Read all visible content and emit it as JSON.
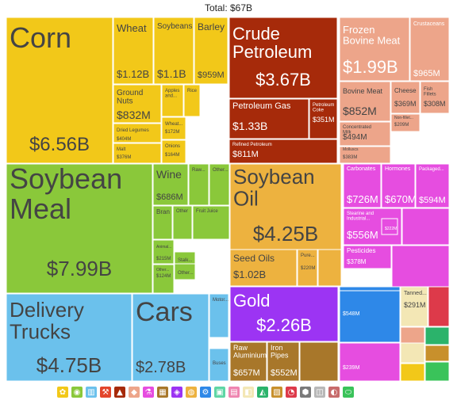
{
  "title": "Total: $67B",
  "chart_data": {
    "type": "treemap",
    "total": "Total: $67B",
    "tiles": [
      {
        "name": "Corn",
        "value": "$6.56B",
        "color": "#f2c819"
      },
      {
        "name": "Wheat",
        "value": "$1.12B",
        "color": "#f2c819"
      },
      {
        "name": "Soybeans",
        "value": "$1.1B",
        "color": "#f2c819"
      },
      {
        "name": "Barley",
        "value": "$959M",
        "color": "#f2c819"
      },
      {
        "name": "Ground Nuts",
        "value": "$832M",
        "color": "#f2c819"
      },
      {
        "name": "Apples and...",
        "value": "",
        "color": "#f2c819"
      },
      {
        "name": "Rice",
        "value": "",
        "color": "#f2c819"
      },
      {
        "name": "Dried Legumes",
        "value": "$404M",
        "color": "#f2c819"
      },
      {
        "name": "Malt",
        "value": "$376M",
        "color": "#f2c819"
      },
      {
        "name": "Wheat...",
        "value": "$172M",
        "color": "#f2c819"
      },
      {
        "name": "Onions",
        "value": "$164M",
        "color": "#f2c819"
      },
      {
        "name": "Crude Petroleum",
        "value": "$3.67B",
        "color": "#a62a0a"
      },
      {
        "name": "Petroleum Gas",
        "value": "$1.33B",
        "color": "#a62a0a"
      },
      {
        "name": "Petroleum Coke",
        "value": "$351M",
        "color": "#a62a0a"
      },
      {
        "name": "Refined Petroleum",
        "value": "$811M",
        "color": "#a62a0a"
      },
      {
        "name": "Frozen Bovine Meat",
        "value": "$1.99B",
        "color": "#eda58a"
      },
      {
        "name": "Crustaceans",
        "value": "$965M",
        "color": "#eda58a"
      },
      {
        "name": "Bovine Meat",
        "value": "$852M",
        "color": "#eda58a"
      },
      {
        "name": "Cheese",
        "value": "$369M",
        "color": "#eda58a"
      },
      {
        "name": "Fish Fillets",
        "value": "$308M",
        "color": "#eda58a"
      },
      {
        "name": "Concentrated Milk",
        "value": "$494M",
        "color": "#eda58a"
      },
      {
        "name": "Non-fillet...",
        "value": "$209M",
        "color": "#eda58a"
      },
      {
        "name": "Molluscs",
        "value": "$383M",
        "color": "#eda58a"
      },
      {
        "name": "Soybean Meal",
        "value": "$7.99B",
        "color": "#8ac83a"
      },
      {
        "name": "Wine",
        "value": "$686M",
        "color": "#8ac83a"
      },
      {
        "name": "Raw...",
        "value": "",
        "color": "#8ac83a"
      },
      {
        "name": "Other...",
        "value": "",
        "color": "#8ac83a"
      },
      {
        "name": "Bran",
        "value": "",
        "color": "#8ac83a"
      },
      {
        "name": "Other",
        "value": "",
        "color": "#8ac83a"
      },
      {
        "name": "Fruit Juice",
        "value": "",
        "color": "#8ac83a"
      },
      {
        "name": "Animal...",
        "value": "$215M",
        "color": "#8ac83a"
      },
      {
        "name": "Other...",
        "value": "$124M",
        "color": "#8ac83a"
      },
      {
        "name": "Stalk...",
        "value": "",
        "color": "#8ac83a"
      },
      {
        "name": "Other...",
        "value": "",
        "color": "#8ac83a"
      },
      {
        "name": "Soybean Oil",
        "value": "$4.25B",
        "color": "#edb23f"
      },
      {
        "name": "Seed Oils",
        "value": "$1.02B",
        "color": "#edb23f"
      },
      {
        "name": "Pure...",
        "value": "$220M",
        "color": "#edb23f"
      },
      {
        "name": "Carbonates",
        "value": "$726M",
        "color": "#e64de0"
      },
      {
        "name": "Hormones",
        "value": "$670M",
        "color": "#e64de0"
      },
      {
        "name": "Packaged...",
        "value": "$594M",
        "color": "#e64de0"
      },
      {
        "name": "Stearine and Industrial...",
        "value": "$556M",
        "color": "#e64de0"
      },
      {
        "name": "",
        "value": "$222M",
        "color": "#e64de0"
      },
      {
        "name": "Pesticides",
        "value": "$378M",
        "color": "#e64de0"
      },
      {
        "name": "Delivery Trucks",
        "value": "$4.75B",
        "color": "#6bc1ec"
      },
      {
        "name": "Cars",
        "value": "$2.78B",
        "color": "#6bc1ec"
      },
      {
        "name": "Motor...",
        "value": "",
        "color": "#6bc1ec"
      },
      {
        "name": "Buses",
        "value": "",
        "color": "#6bc1ec"
      },
      {
        "name": "Gold",
        "value": "$2.26B",
        "color": "#9c34f3"
      },
      {
        "name": "Raw Aluminium",
        "value": "$657M",
        "color": "#a8772a"
      },
      {
        "name": "Iron Pipes",
        "value": "$552M",
        "color": "#a8772a"
      },
      {
        "name": "",
        "value": "$548M",
        "color": "#2e88e8"
      },
      {
        "name": "",
        "value": "$239M",
        "color": "#e64de0"
      },
      {
        "name": "Tanned...",
        "value": "$291M",
        "color": "#f3e7b5"
      }
    ]
  },
  "legend_icons": [
    {
      "name": "vegetable-products-icon",
      "color": "#f2c819",
      "glyph": "✿"
    },
    {
      "name": "foodstuffs-icon",
      "color": "#8ac83a",
      "glyph": "◉"
    },
    {
      "name": "textiles-icon",
      "color": "#6bc1ec",
      "glyph": "▥"
    },
    {
      "name": "machines-icon",
      "color": "#e3452b",
      "glyph": "⚒"
    },
    {
      "name": "mineral-products-icon",
      "color": "#a62a0a",
      "glyph": "▲"
    },
    {
      "name": "animal-products-icon",
      "color": "#eda58a",
      "glyph": "◆"
    },
    {
      "name": "chemical-products-icon",
      "color": "#e64de0",
      "glyph": "⚗"
    },
    {
      "name": "metals-icon",
      "color": "#a8772a",
      "glyph": "▦"
    },
    {
      "name": "precious-metals-icon",
      "color": "#9c34f3",
      "glyph": "◈"
    },
    {
      "name": "animal-fats-icon",
      "color": "#edb23f",
      "glyph": "◍"
    },
    {
      "name": "instruments-icon",
      "color": "#2e88e8",
      "glyph": "⚙"
    },
    {
      "name": "plastics-icon",
      "color": "#5fd6a5",
      "glyph": "▣"
    },
    {
      "name": "paper-goods-icon",
      "color": "#ef85b0",
      "glyph": "▤"
    },
    {
      "name": "stone-glass-icon",
      "color": "#f3e7b5",
      "glyph": "◧"
    },
    {
      "name": "footwear-icon",
      "color": "#2bb36b",
      "glyph": "◭"
    },
    {
      "name": "wood-products-icon",
      "color": "#c8902c",
      "glyph": "▧"
    },
    {
      "name": "miscellaneous-icon",
      "color": "#dd3a4a",
      "glyph": "◔"
    },
    {
      "name": "weapons-icon",
      "color": "#7a7a7a",
      "glyph": "⬢"
    },
    {
      "name": "arts-icon",
      "color": "#b8b8b8",
      "glyph": "◫"
    },
    {
      "name": "animal-hides-icon",
      "color": "#c76b6b",
      "glyph": "◐"
    },
    {
      "name": "transportation-icon",
      "color": "#3ac35a",
      "glyph": "⬭"
    }
  ]
}
